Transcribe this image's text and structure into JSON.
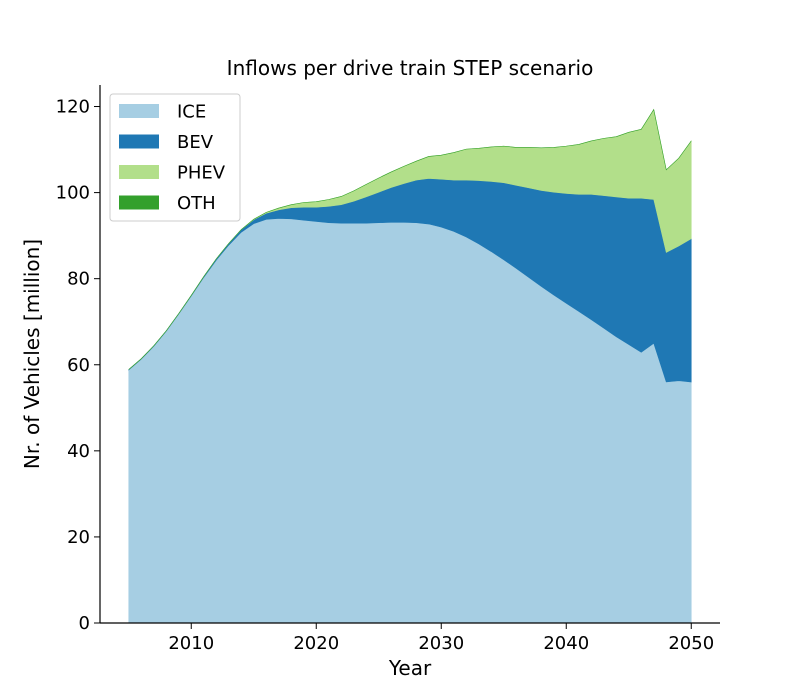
{
  "chart_data": {
    "type": "area",
    "stacked": true,
    "title": "Inflows per drive train STEP scenario",
    "xlabel": "Year",
    "ylabel": "Nr. of Vehicles [million]",
    "xlim": [
      2002.7,
      2052.3
    ],
    "ylim": [
      0,
      125
    ],
    "xticks": [
      2010,
      2020,
      2030,
      2040,
      2050
    ],
    "yticks": [
      0,
      20,
      40,
      60,
      80,
      100,
      120
    ],
    "grid": false,
    "legend_position": "top-left",
    "x": [
      2005,
      2006,
      2007,
      2008,
      2009,
      2010,
      2011,
      2012,
      2013,
      2014,
      2015,
      2016,
      2017,
      2018,
      2019,
      2020,
      2021,
      2022,
      2023,
      2024,
      2025,
      2026,
      2027,
      2028,
      2029,
      2030,
      2031,
      2032,
      2033,
      2034,
      2035,
      2036,
      2037,
      2038,
      2039,
      2040,
      2041,
      2042,
      2043,
      2044,
      2045,
      2046,
      2047,
      2048,
      2049,
      2050
    ],
    "series": [
      {
        "name": "ICE",
        "color": "#a6cee3",
        "values": [
          58.8,
          61.3,
          64.3,
          67.8,
          71.8,
          76.0,
          80.3,
          84.3,
          87.8,
          90.8,
          92.8,
          93.8,
          94.0,
          93.9,
          93.6,
          93.3,
          93.0,
          92.9,
          92.9,
          92.9,
          93.0,
          93.1,
          93.1,
          93.0,
          92.7,
          92.0,
          91.0,
          89.7,
          88.1,
          86.3,
          84.4,
          82.4,
          80.3,
          78.2,
          76.2,
          74.3,
          72.4,
          70.5,
          68.5,
          66.5,
          64.7,
          62.9,
          65.0,
          56.0,
          56.3,
          56.0
        ]
      },
      {
        "name": "BEV",
        "color": "#1f78b4",
        "values": [
          0.1,
          0.1,
          0.1,
          0.1,
          0.1,
          0.1,
          0.2,
          0.3,
          0.4,
          0.6,
          0.9,
          1.4,
          2.0,
          2.6,
          3.0,
          3.3,
          3.8,
          4.3,
          5.1,
          6.1,
          7.1,
          8.1,
          9.0,
          9.9,
          10.6,
          11.1,
          11.9,
          13.2,
          14.7,
          16.3,
          17.9,
          19.3,
          20.8,
          22.3,
          23.9,
          25.5,
          27.2,
          29.1,
          30.8,
          32.5,
          34.0,
          35.8,
          33.4,
          30.1,
          31.3,
          33.3
        ]
      },
      {
        "name": "PHEV",
        "color": "#b2df8a",
        "values": [
          0,
          0,
          0,
          0,
          0,
          0,
          0,
          0,
          0,
          0,
          0.1,
          0.2,
          0.4,
          0.7,
          1.1,
          1.3,
          1.6,
          1.9,
          2.4,
          2.9,
          3.3,
          3.6,
          4.0,
          4.4,
          5.1,
          5.6,
          6.4,
          7.2,
          7.5,
          8.0,
          8.5,
          8.8,
          9.4,
          9.9,
          10.4,
          11.0,
          11.6,
          12.4,
          13.3,
          14.0,
          15.3,
          16.0,
          20.9,
          19.2,
          20.4,
          22.7
        ]
      },
      {
        "name": "OTH",
        "color": "#33a02c",
        "values": [
          0,
          0,
          0,
          0,
          0,
          0,
          0,
          0,
          0,
          0,
          0,
          0,
          0,
          0,
          0,
          0,
          0,
          0,
          0,
          0,
          0,
          0,
          0,
          0,
          0,
          0,
          0,
          0,
          0,
          0,
          0,
          0,
          0,
          0,
          0,
          0,
          0,
          0,
          0,
          0,
          0,
          0,
          0,
          0,
          0,
          0
        ]
      }
    ]
  }
}
